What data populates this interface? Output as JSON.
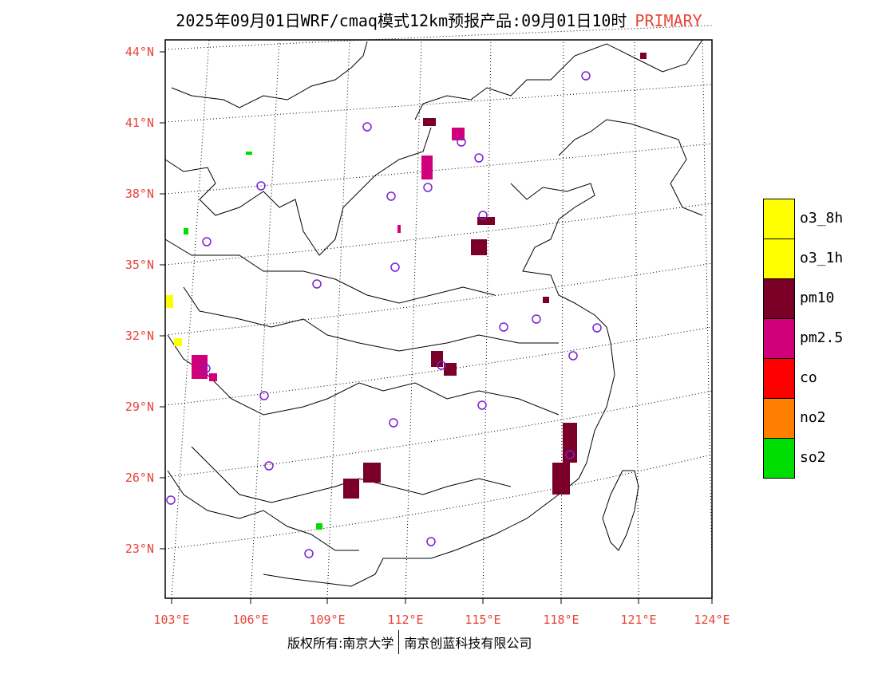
{
  "title": {
    "main": "2025年09月01日WRF/cmaq模式12km预报产品:09月01日10时",
    "tag": "PRIMARY"
  },
  "map": {
    "lat_labels": [
      "44°N",
      "41°N",
      "38°N",
      "35°N",
      "32°N",
      "29°N",
      "26°N",
      "23°N"
    ],
    "lon_labels": [
      "103°E",
      "106°E",
      "109°E",
      "112°E",
      "115°E",
      "118°E",
      "121°E",
      "124°E"
    ]
  },
  "legend": [
    {
      "label": "o3_8h",
      "color": "#ffff00"
    },
    {
      "label": "o3_1h",
      "color": "#ffff00"
    },
    {
      "label": "pm10",
      "color": "#7a0028"
    },
    {
      "label": "pm2.5",
      "color": "#d0007a"
    },
    {
      "label": "co",
      "color": "#ff0000"
    },
    {
      "label": "no2",
      "color": "#ff7f00"
    },
    {
      "label": "so2",
      "color": "#00dd00"
    }
  ],
  "footer": {
    "left": "版权所有:南京大学",
    "right": "南京创蓝科技有限公司"
  },
  "colors": {
    "accent": "#e8443a",
    "station_ring": "#7a1fd6",
    "pm10": "#7a0028",
    "pm25": "#d0007a",
    "so2": "#00dd00",
    "o3": "#ffff00"
  }
}
